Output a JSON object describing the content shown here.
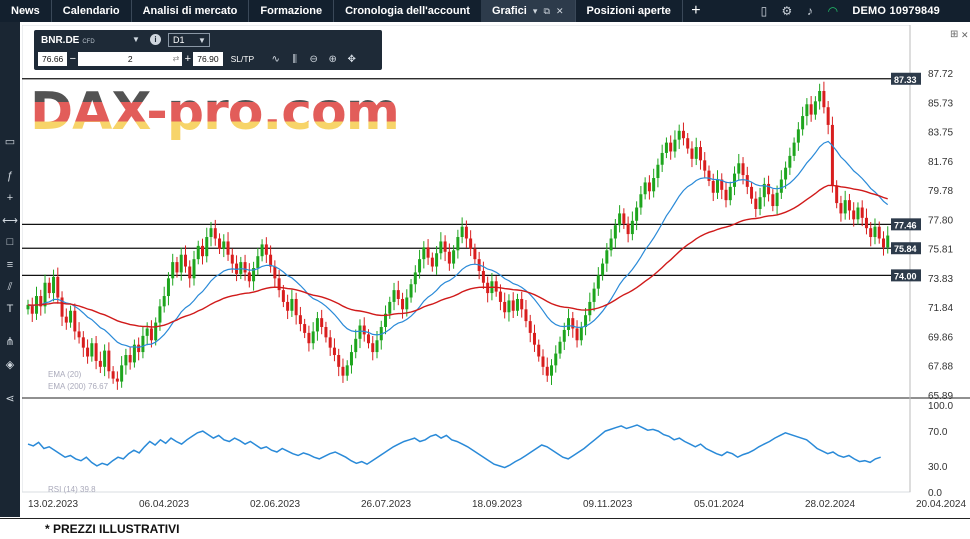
{
  "nav": {
    "items": [
      "News",
      "Calendario",
      "Analisi di mercato",
      "Formazione",
      "Cronologia dell'account",
      "Grafici",
      "Posizioni aperte"
    ],
    "active_index": 5
  },
  "account": {
    "label": "DEMO",
    "number": "10979849"
  },
  "trade_panel": {
    "symbol": "BNR.DE",
    "symbol_type": "CFD",
    "timeframe": "D1",
    "sell_price": "76.66",
    "quantity": "2",
    "buy_price": "76.90",
    "sltp_label": "SL/TP"
  },
  "watermark": "DAX-pro.com",
  "indicators": {
    "ema1_label": "EMA (20)",
    "ema2_label": "EMA (200) 76.67",
    "rsi_label": "RSI (14) 39.8"
  },
  "footnote": "* PREZZI ILLUSTRATIVI",
  "chart_data": {
    "type": "candlestick",
    "instrument": "BNR.DE",
    "timeframe": "D1",
    "y_ticks": [
      "87.72",
      "85.73",
      "83.75",
      "81.76",
      "79.78",
      "77.80",
      "75.81",
      "73.83",
      "71.84",
      "69.86",
      "67.88",
      "65.89"
    ],
    "ylim": [
      65.89,
      87.72
    ],
    "x_ticks": [
      "13.02.2023",
      "06.04.2023",
      "02.06.2023",
      "26.07.2023",
      "18.09.2023",
      "09.11.2023",
      "05.01.2024",
      "28.02.2024",
      "20.04.2024"
    ],
    "horizontal_levels": [
      87.33,
      77.46,
      75.84,
      74.0
    ],
    "level_labels": [
      "87.33",
      "77.46",
      "75.84",
      "74.00"
    ],
    "series": [
      {
        "name": "Close",
        "values": [
          72.0,
          71.4,
          72.6,
          71.9,
          73.5,
          72.8,
          73.9,
          72.5,
          71.2,
          70.8,
          71.6,
          70.2,
          69.8,
          69.1,
          68.5,
          69.4,
          68.2,
          67.8,
          68.9,
          67.5,
          67.0,
          66.8,
          67.9,
          68.6,
          68.1,
          69.3,
          68.8,
          69.9,
          70.4,
          69.6,
          70.8,
          71.9,
          72.6,
          73.8,
          74.9,
          74.2,
          75.4,
          74.6,
          73.8,
          75.1,
          76.0,
          75.3,
          76.6,
          77.2,
          76.5,
          75.8,
          76.3,
          75.4,
          74.8,
          74.1,
          74.9,
          74.2,
          73.6,
          74.5,
          75.3,
          76.1,
          75.4,
          74.6,
          73.8,
          73.0,
          72.2,
          71.6,
          72.4,
          71.3,
          70.7,
          70.1,
          69.4,
          70.2,
          71.1,
          70.5,
          69.8,
          69.1,
          68.6,
          67.8,
          67.2,
          67.9,
          68.8,
          69.7,
          70.6,
          70.0,
          69.4,
          68.8,
          69.6,
          70.5,
          71.4,
          72.2,
          73.0,
          72.4,
          71.7,
          72.5,
          73.4,
          74.2,
          75.1,
          75.9,
          75.2,
          74.6,
          75.5,
          76.3,
          75.6,
          74.8,
          75.7,
          76.6,
          77.3,
          76.5,
          75.8,
          75.1,
          74.3,
          73.5,
          72.8,
          73.6,
          72.9,
          72.2,
          71.5,
          72.3,
          71.6,
          72.4,
          71.7,
          70.9,
          70.1,
          69.3,
          68.5,
          67.8,
          67.2,
          67.9,
          68.7,
          69.5,
          70.3,
          71.1,
          70.4,
          69.6,
          70.5,
          71.3,
          72.2,
          73.1,
          74.0,
          74.8,
          75.7,
          76.5,
          77.4,
          78.2,
          77.5,
          76.8,
          77.7,
          78.6,
          79.5,
          80.3,
          79.7,
          80.6,
          81.5,
          82.3,
          83.0,
          82.4,
          83.2,
          83.8,
          83.3,
          82.6,
          81.9,
          82.7,
          81.8,
          81.1,
          80.4,
          79.6,
          80.5,
          79.8,
          79.1,
          80.0,
          80.9,
          81.6,
          80.8,
          80.0,
          79.2,
          78.5,
          79.3,
          80.2,
          79.5,
          78.7,
          79.6,
          80.5,
          81.3,
          82.1,
          83.0,
          83.9,
          84.8,
          85.6,
          84.9,
          85.8,
          86.5,
          85.4,
          84.2,
          80.1,
          78.9,
          78.2,
          79.1,
          78.4,
          77.8,
          78.6,
          77.9,
          77.2,
          76.6,
          77.3,
          76.5,
          75.9,
          76.7
        ]
      },
      {
        "name": "EMA (20)",
        "values": []
      },
      {
        "name": "EMA (200)",
        "values": []
      }
    ],
    "rsi": {
      "y_ticks": [
        "100.0",
        "70.0",
        "30.0",
        "0.0"
      ],
      "ylim": [
        0,
        100
      ],
      "values": [
        55,
        53,
        57,
        50,
        52,
        48,
        44,
        40,
        42,
        38,
        36,
        40,
        34,
        30,
        33,
        31,
        36,
        40,
        38,
        44,
        48,
        45,
        52,
        58,
        54,
        60,
        56,
        62,
        58,
        55,
        60,
        64,
        68,
        70,
        66,
        62,
        65,
        60,
        58,
        62,
        59,
        55,
        58,
        54,
        50,
        52,
        48,
        46,
        50,
        47,
        44,
        42,
        45,
        43,
        40,
        38,
        41,
        44,
        46,
        43,
        40,
        36,
        33,
        35,
        32,
        36,
        40,
        44,
        48,
        52,
        55,
        58,
        60,
        62,
        58,
        60,
        64,
        66,
        62,
        65,
        60,
        58,
        55,
        52,
        48,
        44,
        40,
        36,
        32,
        30,
        28,
        31,
        35,
        38,
        42,
        46,
        50,
        54,
        52,
        48,
        44,
        40,
        38,
        42,
        46,
        50,
        55,
        60,
        65,
        70,
        72,
        74,
        76,
        73,
        75,
        77,
        74,
        71,
        72,
        70,
        66,
        64,
        60,
        62,
        58,
        55,
        52,
        55,
        50,
        47,
        44,
        42,
        46,
        44,
        40,
        43,
        45,
        48,
        52,
        55,
        58,
        62,
        65,
        68,
        66,
        64,
        62,
        60,
        55,
        50,
        47,
        44,
        46,
        42,
        40,
        42,
        38,
        35,
        36,
        34,
        38,
        40
      ]
    }
  },
  "colors": {
    "bull": "#1ea51e",
    "bear": "#d81e1e",
    "ema20": "#2a8ad8",
    "ema200": "#d01a1a",
    "rsi": "#2a8ad8",
    "dark": "#13202e"
  }
}
